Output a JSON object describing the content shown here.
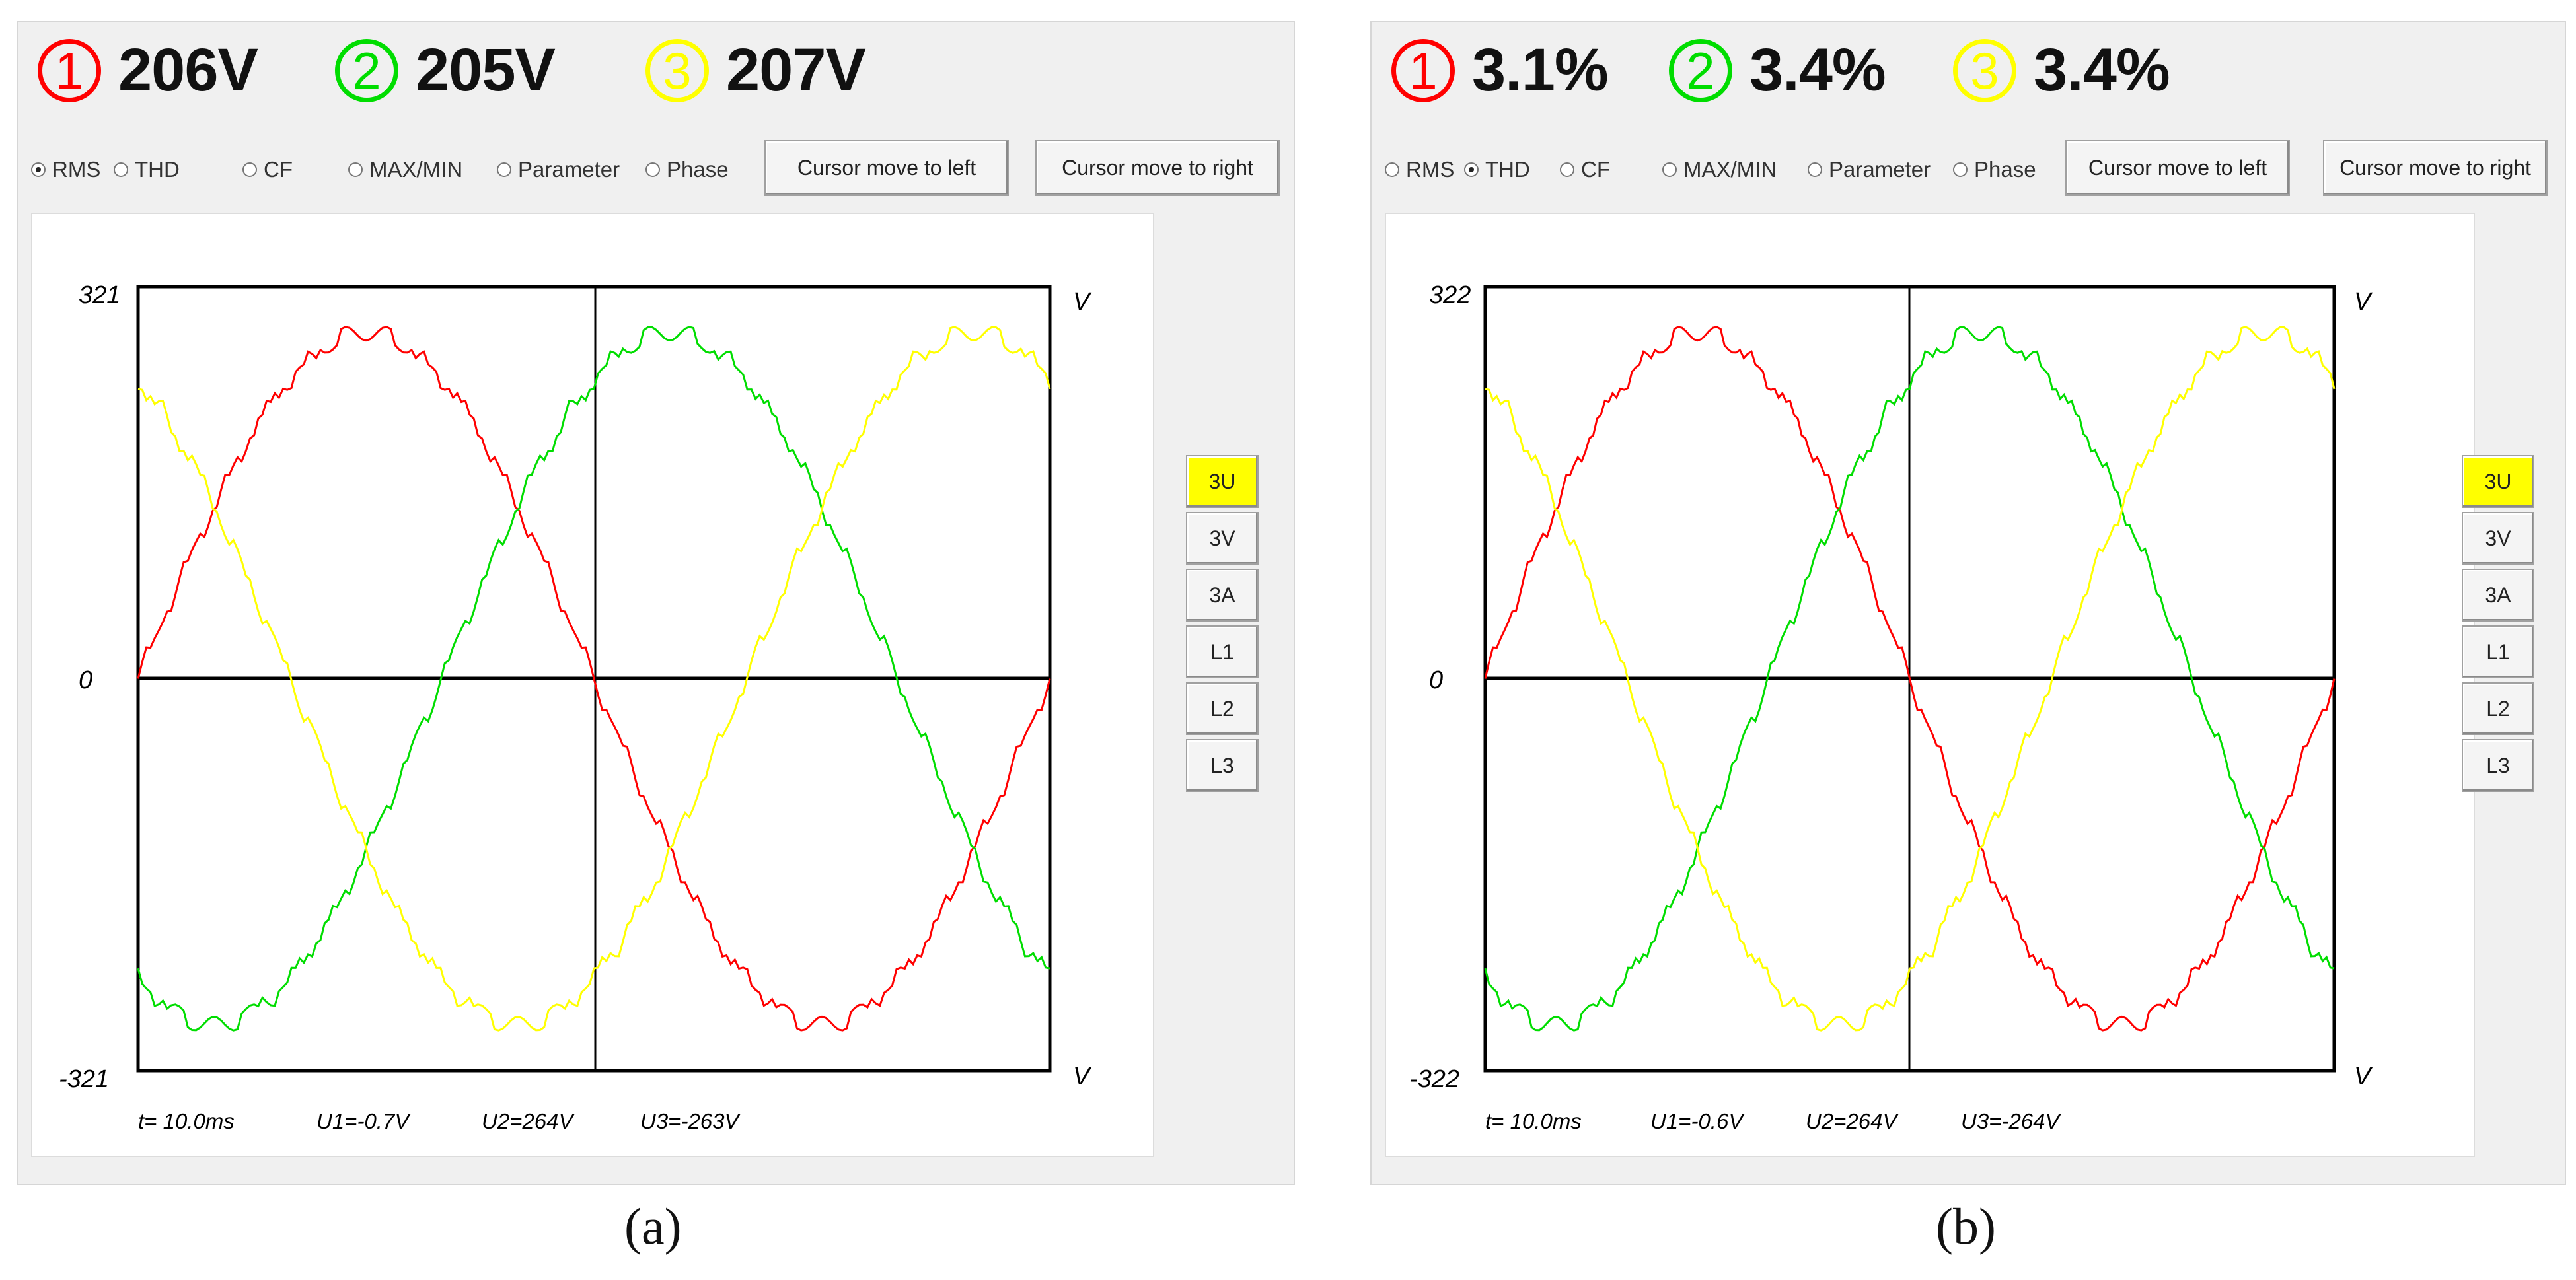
{
  "panels": [
    {
      "id": "a",
      "readings": [
        {
          "num": "1",
          "value": "206V",
          "color": "#ff0000"
        },
        {
          "num": "2",
          "value": "205V",
          "color": "#00dd00"
        },
        {
          "num": "3",
          "value": "207V",
          "color": "#ffff00"
        }
      ],
      "radios": [
        {
          "label": "RMS",
          "selected": true
        },
        {
          "label": "THD",
          "selected": false
        },
        {
          "label": "CF",
          "selected": false
        },
        {
          "label": "MAX/MIN",
          "selected": false
        },
        {
          "label": "Parameter",
          "selected": false
        },
        {
          "label": "Phase",
          "selected": false
        }
      ],
      "buttons": {
        "left": "Cursor move to left",
        "right": "Cursor move to right"
      },
      "side_buttons": [
        "3U",
        "3V",
        "3A",
        "L1",
        "L2",
        "L3"
      ],
      "active_side": "3U",
      "y_top_label": "321",
      "y_zero_label": "0",
      "y_bottom_label": "-321",
      "unit": "V",
      "status": {
        "t": "t= 10.0ms",
        "u1": "U1=-0.7V",
        "u2": "U2=264V",
        "u3": "U3=-263V"
      },
      "caption": "(a)"
    },
    {
      "id": "b",
      "readings": [
        {
          "num": "1",
          "value": "3.1%",
          "color": "#ff0000"
        },
        {
          "num": "2",
          "value": "3.4%",
          "color": "#00dd00"
        },
        {
          "num": "3",
          "value": "3.4%",
          "color": "#ffff00"
        }
      ],
      "radios": [
        {
          "label": "RMS",
          "selected": false
        },
        {
          "label": "THD",
          "selected": true
        },
        {
          "label": "CF",
          "selected": false
        },
        {
          "label": "MAX/MIN",
          "selected": false
        },
        {
          "label": "Parameter",
          "selected": false
        },
        {
          "label": "Phase",
          "selected": false
        }
      ],
      "buttons": {
        "left": "Cursor move to left",
        "right": "Cursor move to right"
      },
      "side_buttons": [
        "3U",
        "3V",
        "3A",
        "L1",
        "L2",
        "L3"
      ],
      "active_side": "3U",
      "y_top_label": "322",
      "y_zero_label": "0",
      "y_bottom_label": "-322",
      "unit": "V",
      "status": {
        "t": "t= 10.0ms",
        "u1": "U1=-0.6V",
        "u2": "U2=264V",
        "u3": "U3=-264V"
      },
      "caption": "(b)"
    }
  ],
  "colors": {
    "phase1": "#ff0000",
    "phase2": "#00dd00",
    "phase3": "#ffff00",
    "active_button": "#ffff00"
  }
}
